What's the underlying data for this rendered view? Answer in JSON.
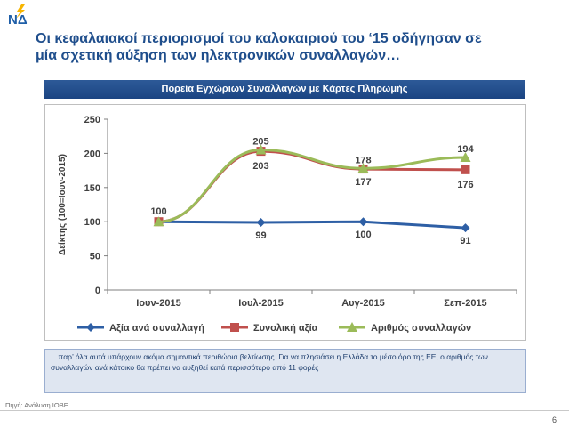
{
  "logo": {
    "text": "ΝΔ",
    "color": "#1f5fa8"
  },
  "slide": {
    "title_line1": "Οι κεφαλαιακοί περιορισμοί του καλοκαιριού του ‘15 οδήγησαν σε",
    "title_line2": "μία σχετική αύξηση των ηλεκτρονικών συναλλαγών…",
    "chart_heading": "Πορεία Εγχώριων Συναλλαγών με Κάρτες Πληρωμής",
    "note": "…παρ’ όλα αυτά υπάρχουν ακόμα σημαντικά περιθώρια βελτίωσης. Για να πλησιάσει η Ελλάδα το μέσο όρο της ΕΕ, ο αριθμός των συναλλαγών ανά κάτοικο θα πρέπει να αυξηθεί κατά περισσότερο από 11 φορές",
    "source": "Πηγή: Ανάλυση ΙΟΒΕ",
    "page_number": "6"
  },
  "chart_data": {
    "type": "line",
    "title": "",
    "xlabel": "",
    "ylabel": "Δείκτης (100=Ιουν-2015)",
    "categories": [
      "Ιουν-2015",
      "Ιουλ-2015",
      "Αυγ-2015",
      "Σεπ-2015"
    ],
    "ylim": [
      0,
      250
    ],
    "yticks": [
      0,
      50,
      100,
      150,
      200,
      250
    ],
    "grid": false,
    "legend_position": "bottom",
    "series": [
      {
        "name": "Αξία ανά συναλλαγή",
        "values": [
          100,
          99,
          100,
          91
        ],
        "color": "#2e5fa5",
        "marker": "diamond",
        "labels": [
          "",
          "99",
          "100",
          "91"
        ]
      },
      {
        "name": "Συνολική αξία",
        "values": [
          100,
          203,
          177,
          176
        ],
        "color": "#c0504d",
        "marker": "square",
        "labels": [
          "",
          "203",
          "177",
          "176"
        ]
      },
      {
        "name": "Αριθμός συναλλαγών",
        "values": [
          100,
          205,
          178,
          194
        ],
        "color": "#9bbb59",
        "marker": "triangle",
        "labels": [
          "100",
          "205",
          "178",
          "194"
        ]
      }
    ]
  }
}
